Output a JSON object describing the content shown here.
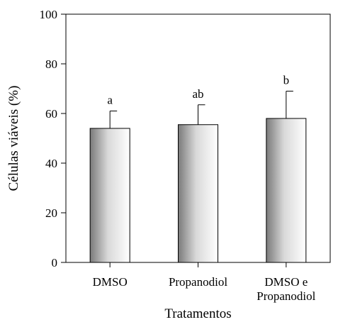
{
  "chart_data": {
    "type": "bar",
    "title": "",
    "xlabel": "Tratamentos",
    "ylabel": "Células viáveis (%)",
    "ylim": [
      0,
      100
    ],
    "yticks": [
      0,
      20,
      40,
      60,
      80,
      100
    ],
    "grid": false,
    "categories": [
      [
        "DMSO"
      ],
      [
        "Propanodiol"
      ],
      [
        "DMSO e",
        "Propanodiol"
      ]
    ],
    "values": [
      54,
      55.5,
      58
    ],
    "errors": [
      7,
      8,
      11
    ],
    "significance_labels": [
      "a",
      "ab",
      "b"
    ],
    "bar_style": "gray-gradient"
  }
}
